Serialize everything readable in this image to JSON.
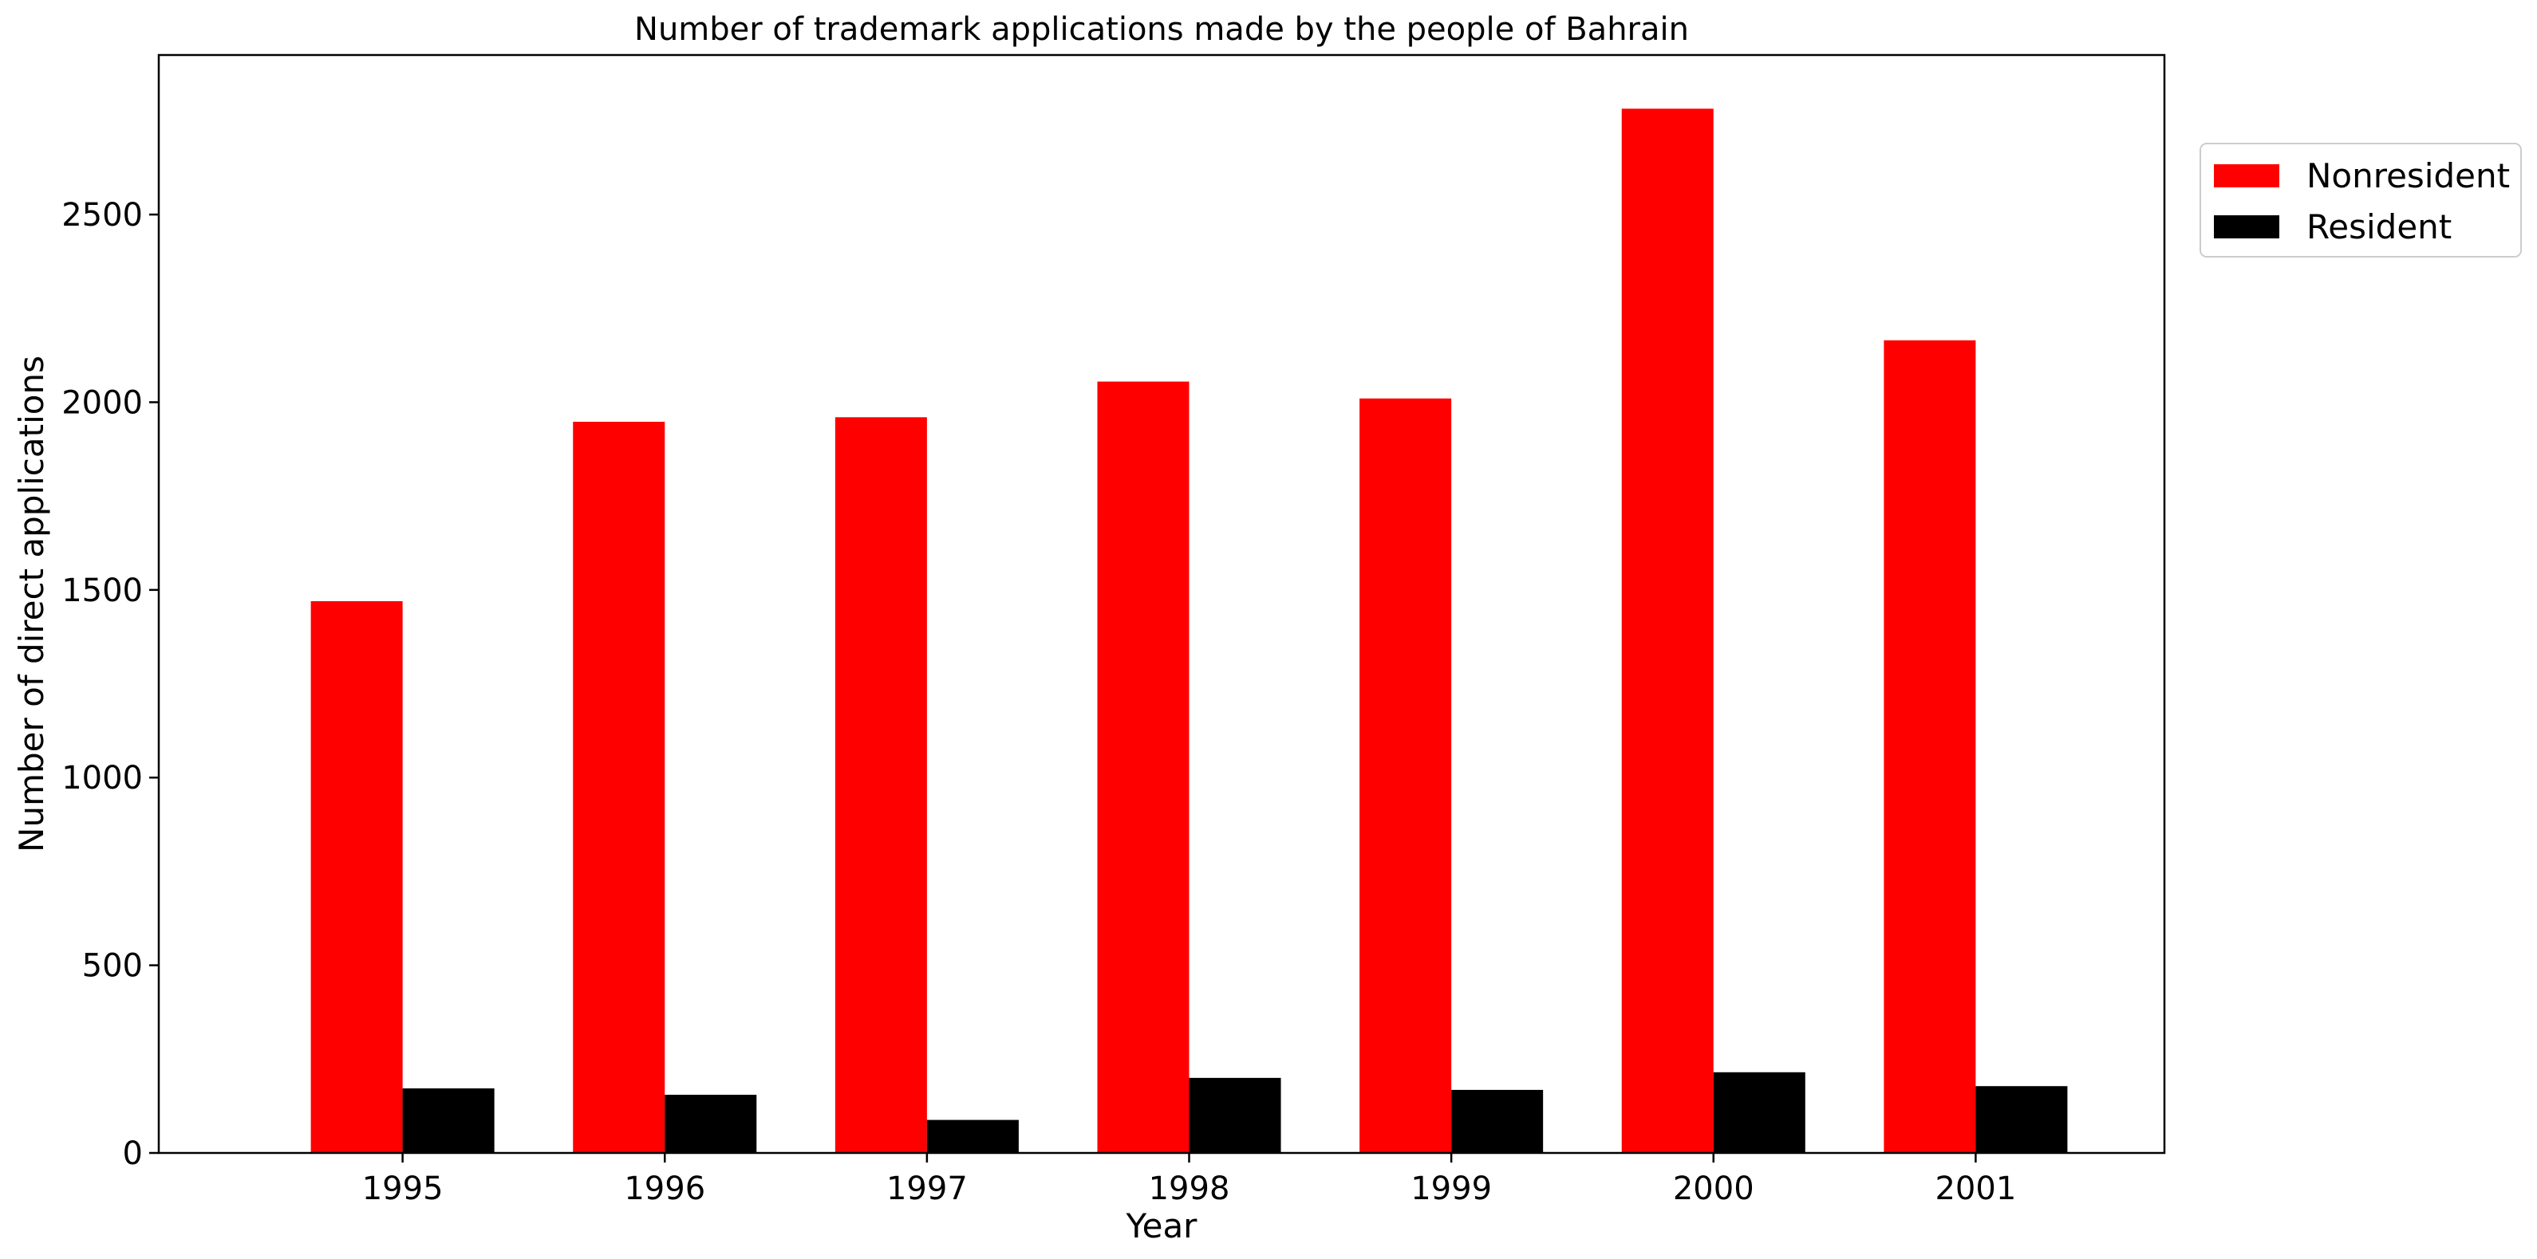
{
  "chart_data": {
    "type": "bar",
    "title": "Number of trademark applications made by the people of Bahrain",
    "xlabel": "Year",
    "ylabel": "Number of direct applications",
    "categories": [
      "1995",
      "1996",
      "1997",
      "1998",
      "1999",
      "2000",
      "2001"
    ],
    "series": [
      {
        "name": "Nonresident",
        "color": "#ff0000",
        "values": [
          1470,
          1948,
          1960,
          2055,
          2010,
          2782,
          2165
        ]
      },
      {
        "name": "Resident",
        "color": "#000000",
        "values": [
          172,
          155,
          88,
          200,
          168,
          215,
          178
        ]
      }
    ],
    "ylim": [
      0,
      2925
    ],
    "yticks": [
      0,
      500,
      1000,
      1500,
      2000,
      2500
    ],
    "grid": false,
    "legend_position": "outside-top-right"
  }
}
